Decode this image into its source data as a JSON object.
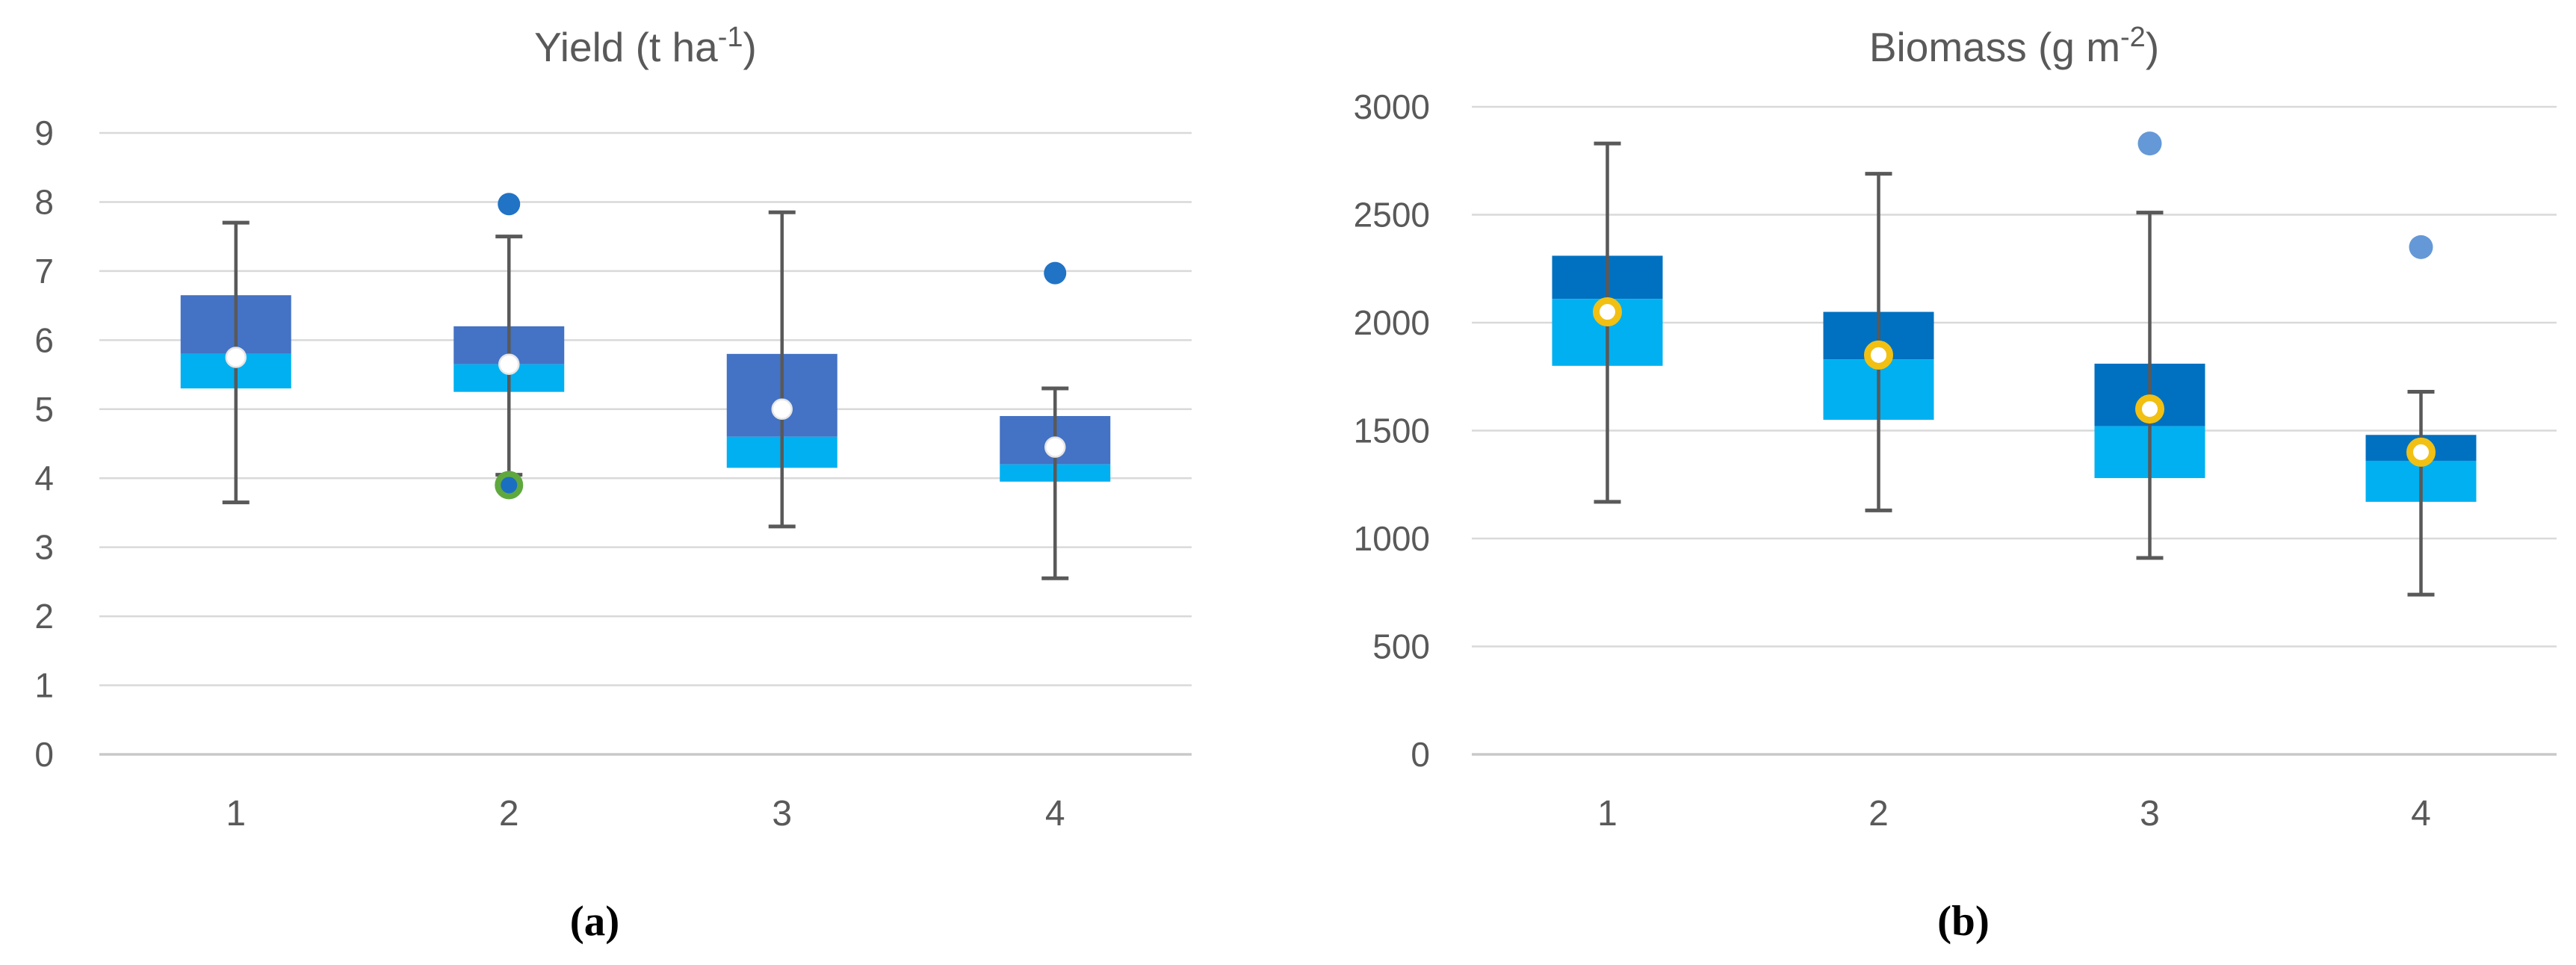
{
  "chart_data": [
    {
      "type": "boxplot",
      "panel_label": "(a)",
      "title": "Yield (t ha⁻¹)",
      "title_parts": {
        "base": "Yield (t ha",
        "sup": "-1",
        "end": ")"
      },
      "categories": [
        "1",
        "2",
        "3",
        "4"
      ],
      "xlabel": "",
      "ylabel": "",
      "ylim": [
        0,
        9
      ],
      "yticks": [
        0,
        1,
        2,
        3,
        4,
        5,
        6,
        7,
        8,
        9
      ],
      "grid": true,
      "legend": false,
      "series": [
        {
          "category": "1",
          "whisker_low": 3.65,
          "q1": 5.3,
          "median": 5.8,
          "q3": 6.65,
          "whisker_high": 7.7,
          "mean": 5.75,
          "outliers": []
        },
        {
          "category": "2",
          "whisker_low": 4.05,
          "q1": 5.25,
          "median": 5.65,
          "q3": 6.2,
          "whisker_high": 7.5,
          "mean": 5.65,
          "outliers": [
            {
              "value": 7.97,
              "style": "blue"
            },
            {
              "value": 3.9,
              "style": "blue-green-ring"
            }
          ]
        },
        {
          "category": "3",
          "whisker_low": 3.3,
          "q1": 4.15,
          "median": 4.6,
          "q3": 5.8,
          "whisker_high": 7.85,
          "mean": 5.0,
          "outliers": []
        },
        {
          "category": "4",
          "whisker_low": 2.55,
          "q1": 3.95,
          "median": 4.2,
          "q3": 4.9,
          "whisker_high": 5.3,
          "mean": 4.45,
          "outliers": [
            {
              "value": 6.97,
              "style": "blue"
            }
          ]
        }
      ],
      "colors": {
        "box_upper": "#4472C4",
        "box_lower": "#00B0F0",
        "mean_fill": "#FFFFFF",
        "mean_ring": "#E6E6E6",
        "whisker": "#595959",
        "outlier": "#2173C5",
        "outlier_ring": "#5FA83D",
        "outlier_ring_core": "#1B6FC0",
        "gridline": "#D9D9D9",
        "axis_line": "#C9C9C9",
        "text": "#595959"
      }
    },
    {
      "type": "boxplot",
      "panel_label": "(b)",
      "title": "Biomass (g m⁻²)",
      "title_parts": {
        "base": "Biomass (g m",
        "sup": "-2",
        "end": ")"
      },
      "categories": [
        "1",
        "2",
        "3",
        "4"
      ],
      "xlabel": "",
      "ylabel": "",
      "ylim": [
        0,
        3000
      ],
      "yticks": [
        0,
        500,
        1000,
        1500,
        2000,
        2500,
        3000
      ],
      "grid": true,
      "legend": false,
      "series": [
        {
          "category": "1",
          "whisker_low": 1170,
          "q1": 1800,
          "median": 2110,
          "q3": 2310,
          "whisker_high": 2830,
          "mean": 2050,
          "outliers": []
        },
        {
          "category": "2",
          "whisker_low": 1130,
          "q1": 1550,
          "median": 1830,
          "q3": 2050,
          "whisker_high": 2690,
          "mean": 1850,
          "outliers": []
        },
        {
          "category": "3",
          "whisker_low": 910,
          "q1": 1280,
          "median": 1520,
          "q3": 1810,
          "whisker_high": 2510,
          "mean": 1600,
          "outliers": [
            {
              "value": 2830,
              "style": "blue"
            }
          ]
        },
        {
          "category": "4",
          "whisker_low": 740,
          "q1": 1170,
          "median": 1360,
          "q3": 1480,
          "whisker_high": 1680,
          "mean": 1400,
          "outliers": [
            {
              "value": 2350,
              "style": "blue"
            }
          ]
        }
      ],
      "colors": {
        "box_upper": "#0070C0",
        "box_lower": "#00B0F0",
        "mean_fill": "#FFFFFF",
        "mean_ring": "#F1C013",
        "whisker": "#595959",
        "outlier": "#6598D6",
        "gridline": "#D9D9D9",
        "axis_line": "#C9C9C9",
        "text": "#595959"
      }
    }
  ]
}
